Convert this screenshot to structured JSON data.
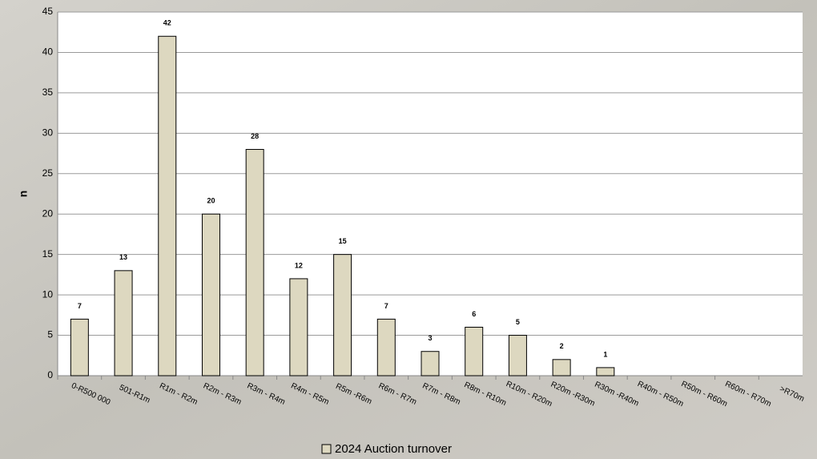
{
  "chart_data": {
    "type": "bar",
    "y_label": "n",
    "categories": [
      "0-R500 000",
      "501-R1m",
      "R1m - R2m",
      "R2m - R3m",
      "R3m - R4m",
      "R4m - R5m",
      "R5m -R6m",
      "R6m - R7m",
      "R7m - R8m",
      "R8m - R10m",
      "R10m - R20m",
      "R20m -R30m",
      "R30m -R40m",
      "R40m - R50m",
      "R50m - R60m",
      "R60m - R70m",
      ">R70m"
    ],
    "series": [
      {
        "name": "2024 Auction turnover",
        "color": "#ddd8c0",
        "values": [
          7,
          13,
          42,
          20,
          28,
          12,
          15,
          7,
          3,
          6,
          5,
          2,
          1,
          0,
          0,
          0,
          0
        ]
      }
    ],
    "ylim": [
      0,
      45
    ],
    "yticks": [
      0,
      5,
      10,
      15,
      20,
      25,
      30,
      35,
      40,
      45
    ],
    "grid": true,
    "legend": "bottom"
  }
}
